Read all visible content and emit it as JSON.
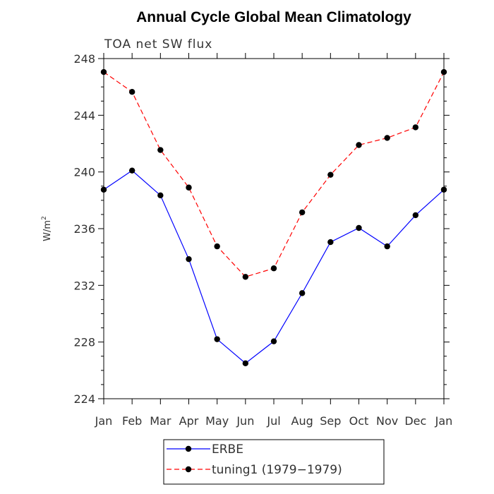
{
  "chart_data": {
    "type": "line",
    "title": "Annual Cycle Global Mean Climatology",
    "subtitle": "TOA net SW flux",
    "ylabel": "W/m",
    "ylabel_superscript": "2",
    "xlabel": "",
    "ylim": [
      224,
      248
    ],
    "yticks": [
      224,
      228,
      232,
      236,
      240,
      244,
      248
    ],
    "categories": [
      "Jan",
      "Feb",
      "Mar",
      "Apr",
      "May",
      "Jun",
      "Jul",
      "Aug",
      "Sep",
      "Oct",
      "Nov",
      "Dec",
      "Jan"
    ],
    "series": [
      {
        "name": "ERBE",
        "color": "#0000ff",
        "dash": "solid",
        "values": [
          238.75,
          240.1,
          238.35,
          233.85,
          228.2,
          226.5,
          228.05,
          231.45,
          235.05,
          236.05,
          234.75,
          236.95,
          238.75
        ]
      },
      {
        "name": "tuning1 (1979−1979)",
        "color": "#ff0000",
        "dash": "dashed",
        "values": [
          247.05,
          245.65,
          241.55,
          238.9,
          234.75,
          232.6,
          233.2,
          237.15,
          239.8,
          241.9,
          242.4,
          243.15,
          247.05
        ]
      }
    ],
    "grid": false,
    "legend_position": "bottom-center"
  }
}
